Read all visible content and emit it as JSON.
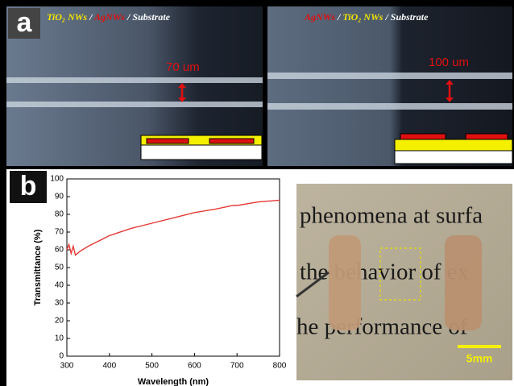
{
  "panel_a": {
    "label": "a",
    "left": {
      "legend": [
        {
          "text": "TiO₂ NWs",
          "color": "#f2e600"
        },
        {
          "text": " / ",
          "color": "#ffffff"
        },
        {
          "text": "AgNWs",
          "color": "#e01010"
        },
        {
          "text": " / ",
          "color": "#ffffff"
        },
        {
          "text": "Substrate",
          "color": "#ffffff"
        }
      ],
      "gap_label": "70 um"
    },
    "right": {
      "legend": [
        {
          "text": "AgNWs",
          "color": "#e01010"
        },
        {
          "text": " / ",
          "color": "#ffffff"
        },
        {
          "text": "TiO₂ NWs",
          "color": "#f2e600"
        },
        {
          "text": " / ",
          "color": "#ffffff"
        },
        {
          "text": "Substrate",
          "color": "#ffffff"
        }
      ],
      "gap_label": "100 um"
    }
  },
  "panel_b": {
    "label": "b",
    "photo": {
      "lines": [
        "phenomena at surfa",
        "the behavior of ex",
        "he performance of"
      ],
      "scale_bar": "5mm"
    }
  },
  "chart_data": {
    "type": "line",
    "xlabel": "Wavelength (nm)",
    "ylabel": "Transmittance (%)",
    "x": [
      300,
      305,
      310,
      315,
      320,
      330,
      350,
      400,
      450,
      500,
      550,
      600,
      650,
      690,
      700,
      750,
      800
    ],
    "series": [
      {
        "color": "#e53935",
        "values": [
          60,
          63,
          58,
          62,
          57,
          59,
          62,
          68,
          72,
          75,
          78,
          81,
          83,
          85,
          85,
          87,
          88
        ]
      }
    ],
    "xlim": [
      300,
      800
    ],
    "xticks": [
      300,
      400,
      500,
      600,
      700,
      800
    ],
    "ylim": [
      0,
      100
    ],
    "yticks": [
      0,
      10,
      20,
      30,
      40,
      50,
      60,
      70,
      80,
      90,
      100
    ]
  }
}
